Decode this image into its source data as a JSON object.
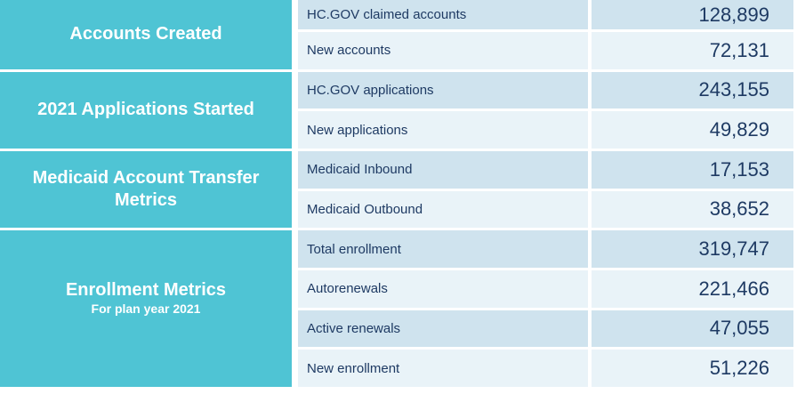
{
  "table": {
    "sections": [
      {
        "title": "Accounts Created"
      },
      {
        "title": "2021 Applications Started"
      },
      {
        "title": "Medicaid Account Transfer Metrics"
      },
      {
        "title": "Enrollment Metrics",
        "subtitle": "For plan year 2021"
      }
    ],
    "rows": [
      {
        "label": "HC.GOV claimed accounts",
        "value": "128,899"
      },
      {
        "label": "New accounts",
        "value": "72,131"
      },
      {
        "label": "HC.GOV applications",
        "value": "243,155"
      },
      {
        "label": "New applications",
        "value": "49,829"
      },
      {
        "label": "Medicaid Inbound",
        "value": "17,153"
      },
      {
        "label": "Medicaid Outbound",
        "value": "38,652"
      },
      {
        "label": "Total enrollment",
        "value": "319,747"
      },
      {
        "label": "Autorenewals",
        "value": "221,466"
      },
      {
        "label": "Active renewals",
        "value": "47,055"
      },
      {
        "label": "New enrollment",
        "value": "51,226"
      }
    ]
  },
  "colors": {
    "section_teal": "#4fc4d4",
    "row_dark": "#cfe3ee",
    "row_light": "#e9f3f8",
    "text_navy": "#1e3a63",
    "separator_white": "#ffffff"
  },
  "chart_data": {
    "type": "table",
    "title": "Marketplace account, application, Medicaid transfer and enrollment metrics",
    "groups": [
      {
        "group": "Accounts Created",
        "rows": [
          [
            "HC.GOV claimed accounts",
            128899
          ],
          [
            "New accounts",
            72131
          ]
        ]
      },
      {
        "group": "2021 Applications Started",
        "rows": [
          [
            "HC.GOV applications",
            243155
          ],
          [
            "New applications",
            49829
          ]
        ]
      },
      {
        "group": "Medicaid Account Transfer Metrics",
        "rows": [
          [
            "Medicaid Inbound",
            17153
          ],
          [
            "Medicaid Outbound",
            38652
          ]
        ]
      },
      {
        "group": "Enrollment Metrics (For plan year 2021)",
        "rows": [
          [
            "Total enrollment",
            319747
          ],
          [
            "Autorenewals",
            221466
          ],
          [
            "Active renewals",
            47055
          ],
          [
            "New enrollment",
            51226
          ]
        ]
      }
    ]
  }
}
